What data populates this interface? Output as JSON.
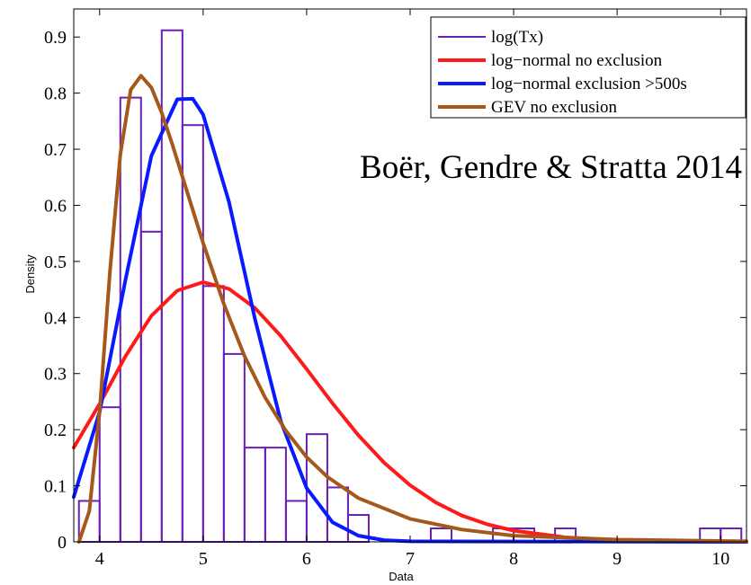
{
  "chart_data": {
    "type": "histogram",
    "xlabel": "Data",
    "ylabel": "Density",
    "xlim": [
      3.75,
      10.25
    ],
    "ylim": [
      0,
      0.95
    ],
    "xticks": [
      4,
      5,
      6,
      7,
      8,
      9,
      10
    ],
    "yticks": [
      0,
      0.1,
      0.2,
      0.3,
      0.4,
      0.5,
      0.6,
      0.7,
      0.8,
      0.9
    ],
    "ytick_labels": [
      "0",
      "0.1",
      "0.2",
      "0.3",
      "0.4",
      "0.5",
      "0.6",
      "0.7",
      "0.8",
      "0.9"
    ],
    "annotation": "Boër, Gendre & Stratta 2014",
    "legend_position": "top-right",
    "grid": false,
    "histogram": {
      "name": "log(Tx)",
      "color": "#6a1fb5",
      "bin_width": 0.2,
      "bins": [
        {
          "x0": 3.8,
          "value": 0.073
        },
        {
          "x0": 4.0,
          "value": 0.24
        },
        {
          "x0": 4.2,
          "value": 0.792
        },
        {
          "x0": 4.4,
          "value": 0.553
        },
        {
          "x0": 4.6,
          "value": 0.912
        },
        {
          "x0": 4.8,
          "value": 0.743
        },
        {
          "x0": 5.0,
          "value": 0.456
        },
        {
          "x0": 5.2,
          "value": 0.335
        },
        {
          "x0": 5.4,
          "value": 0.168
        },
        {
          "x0": 5.6,
          "value": 0.168
        },
        {
          "x0": 5.8,
          "value": 0.073
        },
        {
          "x0": 6.0,
          "value": 0.192
        },
        {
          "x0": 6.2,
          "value": 0.097
        },
        {
          "x0": 6.4,
          "value": 0.048
        },
        {
          "x0": 7.2,
          "value": 0.024
        },
        {
          "x0": 7.8,
          "value": 0.024
        },
        {
          "x0": 8.0,
          "value": 0.024
        },
        {
          "x0": 8.4,
          "value": 0.024
        },
        {
          "x0": 9.8,
          "value": 0.024
        },
        {
          "x0": 10.0,
          "value": 0.024
        }
      ]
    },
    "series": [
      {
        "name": "log−normal no exclusion",
        "color": "#ff1a1a",
        "x": [
          3.75,
          4.0,
          4.25,
          4.5,
          4.75,
          5.0,
          5.25,
          5.5,
          5.75,
          6.0,
          6.25,
          6.5,
          6.75,
          7.0,
          7.25,
          7.5,
          7.75,
          8.0,
          8.5,
          9.0,
          9.5,
          10.0,
          10.25
        ],
        "values": [
          0.168,
          0.246,
          0.331,
          0.403,
          0.448,
          0.463,
          0.451,
          0.417,
          0.367,
          0.308,
          0.247,
          0.19,
          0.141,
          0.101,
          0.07,
          0.047,
          0.031,
          0.02,
          0.008,
          0.003,
          0.001,
          0.0005,
          0.0002
        ]
      },
      {
        "name": "log−normal exclusion >500s",
        "color": "#0a1aff",
        "x": [
          3.75,
          4.0,
          4.25,
          4.5,
          4.75,
          4.9,
          5.0,
          5.25,
          5.5,
          5.75,
          6.0,
          6.25,
          6.5,
          6.75,
          7.0,
          10.25
        ],
        "values": [
          0.08,
          0.232,
          0.467,
          0.688,
          0.789,
          0.79,
          0.762,
          0.606,
          0.398,
          0.215,
          0.096,
          0.035,
          0.011,
          0.003,
          0.001,
          0.0
        ]
      },
      {
        "name": "GEV no exclusion",
        "color": "#a5581a",
        "x": [
          3.8,
          3.9,
          4.0,
          4.1,
          4.2,
          4.3,
          4.4,
          4.5,
          4.6,
          4.7,
          4.8,
          5.0,
          5.2,
          5.4,
          5.6,
          5.8,
          6.0,
          6.2,
          6.5,
          7.0,
          7.5,
          8.0,
          9.0,
          10.25
        ],
        "values": [
          0.0,
          0.055,
          0.233,
          0.483,
          0.691,
          0.806,
          0.831,
          0.81,
          0.765,
          0.71,
          0.651,
          0.533,
          0.424,
          0.331,
          0.257,
          0.198,
          0.151,
          0.116,
          0.078,
          0.041,
          0.022,
          0.011,
          0.004,
          0.001
        ]
      }
    ]
  }
}
